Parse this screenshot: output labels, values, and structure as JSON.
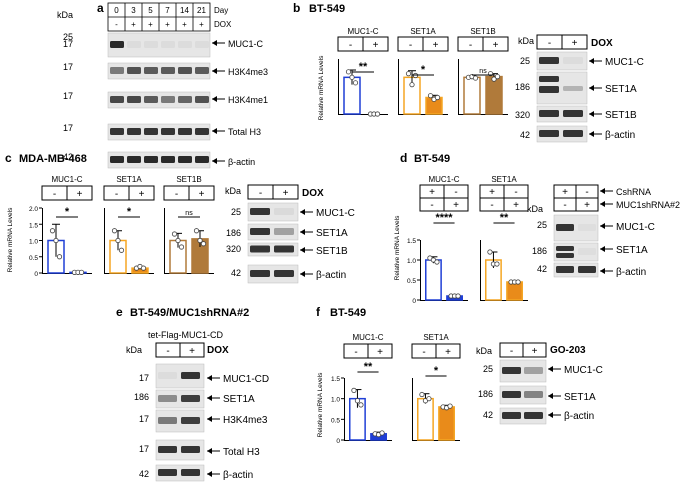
{
  "colors": {
    "blue": "#1f3fd6",
    "orange_light": "#f5a623",
    "orange_dark": "#e98b1a",
    "brown": "#b07a3a",
    "blot_bg": "#e6e6e6",
    "band": "#202020"
  },
  "common": {
    "kda": "kDa",
    "minus": "-",
    "plus": "+",
    "ns": "ns",
    "rel_mrna": "Relative mRNA Levels",
    "arrow": "←"
  },
  "panel_a": {
    "letter": "a",
    "header_row1": [
      "0",
      "3",
      "5",
      "7",
      "14",
      "21"
    ],
    "header_row2": [
      "-",
      "+",
      "+",
      "+",
      "+",
      "+"
    ],
    "day": "Day",
    "dox": "DOX",
    "mw": [
      "25",
      "17",
      "17",
      "17",
      "17",
      "42"
    ],
    "labels": [
      "MUC1-C",
      "H3K4me3",
      "H3K4me1",
      "Total H3",
      "β-actin"
    ]
  },
  "panel_b": {
    "letter": "b",
    "title": "BT-549",
    "genes": [
      "MUC1-C",
      "SET1A",
      "SET1B"
    ],
    "sig": [
      "**",
      "*",
      "ns"
    ],
    "blot_dox": "DOX",
    "mw": [
      "25",
      "186",
      "320",
      "42"
    ],
    "labels": [
      "MUC1-C",
      "SET1A",
      "SET1B",
      "β-actin"
    ]
  },
  "panel_c": {
    "letter": "c",
    "title": "MDA-MB-468",
    "genes": [
      "MUC1-C",
      "SET1A",
      "SET1B"
    ],
    "sig": [
      "*",
      "*",
      "ns"
    ],
    "yticks": [
      "0",
      "0.5",
      "1.0",
      "1.5",
      "2.0"
    ],
    "blot_dox": "DOX",
    "mw": [
      "25",
      "186",
      "320",
      "42"
    ],
    "labels": [
      "MUC1-C",
      "SET1A",
      "SET1B",
      "β-actin"
    ]
  },
  "panel_d": {
    "letter": "d",
    "title": "BT-549",
    "genes": [
      "MUC1-C",
      "SET1A"
    ],
    "sig": [
      "****",
      "**"
    ],
    "yticks": [
      "0",
      "0.5",
      "1.0",
      "1.5"
    ],
    "cond1": "CshRNA",
    "cond2": "MUC1shRNA#2",
    "mw": [
      "25",
      "186",
      "42"
    ],
    "labels": [
      "MUC1-C",
      "SET1A",
      "β-actin"
    ]
  },
  "panel_e": {
    "letter": "e",
    "title": "BT-549/MUC1shRNA#2",
    "construct": "tet-Flag-MUC1-CD",
    "dox": "DOX",
    "mw": [
      "17",
      "186",
      "17",
      "17",
      "42"
    ],
    "labels": [
      "MUC1-CD",
      "SET1A",
      "H3K4me3",
      "Total H3",
      "β-actin"
    ]
  },
  "panel_f": {
    "letter": "f",
    "title": "BT-549",
    "genes": [
      "MUC1-C",
      "SET1A"
    ],
    "sig": [
      "**",
      "*"
    ],
    "yticks": [
      "0",
      "0.5",
      "1.0",
      "1.5"
    ],
    "treatment": "GO-203",
    "mw": [
      "25",
      "186",
      "42"
    ],
    "labels": [
      "MUC1-C",
      "SET1A",
      "β-actin"
    ]
  },
  "chart_data": [
    {
      "id": "b-MUC1-C",
      "type": "bar",
      "categories": [
        "-",
        "+"
      ],
      "values": [
        1.0,
        0.0
      ],
      "points": [
        [
          1.15,
          1.0,
          0.85
        ],
        [
          0.0,
          0.0,
          0.0
        ]
      ],
      "errors": [
        0.2,
        0.0
      ],
      "ylim": [
        0,
        1.5
      ],
      "sig": "**"
    },
    {
      "id": "b-SET1A",
      "type": "bar",
      "categories": [
        "-",
        "+"
      ],
      "values": [
        1.0,
        0.45
      ],
      "points": [
        [
          1.1,
          0.8,
          1.05
        ],
        [
          0.5,
          0.4,
          0.45
        ]
      ],
      "errors": [
        0.18,
        0.06
      ],
      "ylim": [
        0,
        1.5
      ],
      "sig": "*"
    },
    {
      "id": "b-SET1B",
      "type": "bar",
      "categories": [
        "-",
        "+"
      ],
      "values": [
        1.0,
        1.02
      ],
      "points": [
        [
          1.0,
          1.02,
          0.98
        ],
        [
          1.1,
          0.95,
          1.02
        ]
      ],
      "errors": [
        0.05,
        0.08
      ],
      "ylim": [
        0,
        1.5
      ],
      "sig": "ns"
    },
    {
      "id": "c-MUC1-C",
      "type": "bar",
      "categories": [
        "-",
        "+"
      ],
      "values": [
        1.0,
        0.02
      ],
      "points": [
        [
          1.3,
          1.0,
          0.5
        ],
        [
          0.02,
          0.02,
          0.02
        ]
      ],
      "errors": [
        0.5,
        0.01
      ],
      "ylim": [
        0,
        2.0
      ],
      "sig": "*"
    },
    {
      "id": "c-SET1A",
      "type": "bar",
      "categories": [
        "-",
        "+"
      ],
      "values": [
        1.0,
        0.15
      ],
      "points": [
        [
          1.3,
          1.0,
          0.7
        ],
        [
          0.15,
          0.2,
          0.15
        ]
      ],
      "errors": [
        0.3,
        0.04
      ],
      "ylim": [
        0,
        2.0
      ],
      "sig": "*"
    },
    {
      "id": "c-SET1B",
      "type": "bar",
      "categories": [
        "-",
        "+"
      ],
      "values": [
        1.0,
        1.05
      ],
      "points": [
        [
          1.2,
          1.0,
          0.8
        ],
        [
          1.3,
          1.0,
          0.9
        ]
      ],
      "errors": [
        0.22,
        0.25
      ],
      "ylim": [
        0,
        2.0
      ],
      "sig": "ns"
    },
    {
      "id": "d-MUC1-C",
      "type": "bar",
      "categories": [
        "CshRNA",
        "MUC1shRNA#2"
      ],
      "values": [
        1.0,
        0.1
      ],
      "points": [
        [
          1.05,
          1.0,
          0.95
        ],
        [
          0.1,
          0.1,
          0.1
        ]
      ],
      "errors": [
        0.08,
        0.02
      ],
      "ylim": [
        0,
        1.5
      ],
      "sig": "****"
    },
    {
      "id": "d-SET1A",
      "type": "bar",
      "categories": [
        "CshRNA",
        "MUC1shRNA#2"
      ],
      "values": [
        1.0,
        0.45
      ],
      "points": [
        [
          1.2,
          0.9,
          0.9
        ],
        [
          0.45,
          0.45,
          0.45
        ]
      ],
      "errors": [
        0.2,
        0.02
      ],
      "ylim": [
        0,
        1.5
      ],
      "sig": "**"
    },
    {
      "id": "f-MUC1-C",
      "type": "bar",
      "categories": [
        "-",
        "+"
      ],
      "values": [
        1.0,
        0.15
      ],
      "points": [
        [
          1.2,
          0.95,
          0.85
        ],
        [
          0.15,
          0.13,
          0.17
        ]
      ],
      "errors": [
        0.22,
        0.04
      ],
      "ylim": [
        0,
        1.5
      ],
      "sig": "**"
    },
    {
      "id": "f-SET1A",
      "type": "bar",
      "categories": [
        "-",
        "+"
      ],
      "values": [
        1.0,
        0.8
      ],
      "points": [
        [
          1.1,
          0.95,
          1.0
        ],
        [
          0.8,
          0.78,
          0.82
        ]
      ],
      "errors": [
        0.12,
        0.04
      ],
      "ylim": [
        0,
        1.5
      ],
      "sig": "*"
    }
  ]
}
